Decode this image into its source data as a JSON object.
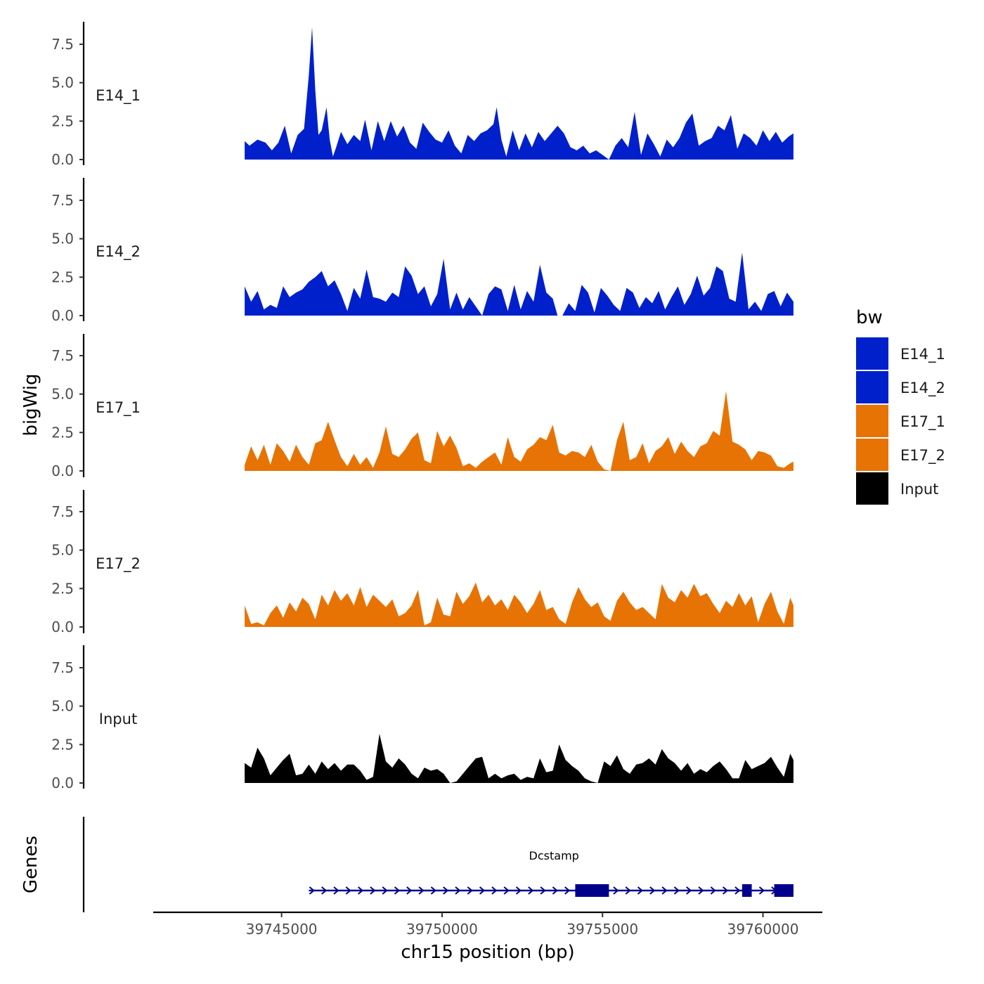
{
  "chart_data": {
    "type": "area",
    "title": "",
    "xlabel": "chr15 position (bp)",
    "ylabel": "bigWig",
    "genes_label": "Genes",
    "xlim": [
      39741000,
      39761850
    ],
    "ylim": [
      0,
      8.9
    ],
    "y_ticks": [
      "0.0",
      "2.5",
      "5.0",
      "7.5"
    ],
    "y_tick_values": [
      0,
      2.5,
      5.0,
      7.5
    ],
    "x_ticks": [
      "39745000",
      "39750000",
      "39755000",
      "39760000"
    ],
    "x_tick_values": [
      39745000,
      39750000,
      39755000,
      39760000
    ],
    "legend": {
      "title": "bw",
      "entries": [
        {
          "label": "E14_1",
          "color": "#0020cc"
        },
        {
          "label": "E14_2",
          "color": "#0020cc"
        },
        {
          "label": "E17_1",
          "color": "#e87305"
        },
        {
          "label": "E17_2",
          "color": "#e87305"
        },
        {
          "label": "Input",
          "color": "#000000"
        }
      ]
    },
    "series": [
      {
        "name": "E14_1",
        "color": "#0020cc",
        "x": [
          39743850,
          39744000,
          39744250,
          39744500,
          39744700,
          39744900,
          39745100,
          39745300,
          39745500,
          39745700,
          39745850,
          39745950,
          39746050,
          39746150,
          39746250,
          39746400,
          39746500,
          39746600,
          39746700,
          39746850,
          39747050,
          39747250,
          39747450,
          39747600,
          39747800,
          39748000,
          39748200,
          39748400,
          39748600,
          39748800,
          39749000,
          39749200,
          39749400,
          39749600,
          39749800,
          39750000,
          39750200,
          39750400,
          39750600,
          39750800,
          39751000,
          39751200,
          39751400,
          39751600,
          39751700,
          39751850,
          39752000,
          39752200,
          39752400,
          39752600,
          39752800,
          39753000,
          39753200,
          39753400,
          39753600,
          39753800,
          39754000,
          39754200,
          39754400,
          39754600,
          39754800,
          39755000,
          39755200,
          39755400,
          39755600,
          39755800,
          39756000,
          39756200,
          39756400,
          39756600,
          39756800,
          39757000,
          39757200,
          39757400,
          39757600,
          39757800,
          39758000,
          39758200,
          39758400,
          39758600,
          39758800,
          39759000,
          39759200,
          39759400,
          39759600,
          39759800,
          39760000,
          39760200,
          39760400,
          39760600,
          39760800,
          39760950
        ],
        "y": [
          1.2,
          0.9,
          1.3,
          1.1,
          0.6,
          1.1,
          2.2,
          0.4,
          1.6,
          2.0,
          5.5,
          8.6,
          4.5,
          1.6,
          1.9,
          3.4,
          1.3,
          0.2,
          0.8,
          1.8,
          1.0,
          1.6,
          1.2,
          2.6,
          0.6,
          2.5,
          1.2,
          2.5,
          1.5,
          2.2,
          1.1,
          0.7,
          2.4,
          1.8,
          1.3,
          1.1,
          1.9,
          0.9,
          0.4,
          1.6,
          1.2,
          1.7,
          1.9,
          2.3,
          3.4,
          1.3,
          0.2,
          1.9,
          0.6,
          1.7,
          0.8,
          1.8,
          1.2,
          1.7,
          2.2,
          1.7,
          0.8,
          0.6,
          0.9,
          0.4,
          0.6,
          0.3,
          0.0,
          0.9,
          1.4,
          0.8,
          3.1,
          0.3,
          1.7,
          1.0,
          0.2,
          1.3,
          0.8,
          1.4,
          2.4,
          3.0,
          0.9,
          1.2,
          1.4,
          2.2,
          1.9,
          2.9,
          0.7,
          1.7,
          1.4,
          0.9,
          1.9,
          1.2,
          1.8,
          1.1,
          1.5,
          1.7
        ]
      },
      {
        "name": "E14_2",
        "color": "#0020cc",
        "x": [
          39743850,
          39744050,
          39744250,
          39744450,
          39744650,
          39744850,
          39745050,
          39745250,
          39745450,
          39745650,
          39745850,
          39746050,
          39746250,
          39746450,
          39746650,
          39746850,
          39747050,
          39747250,
          39747450,
          39747650,
          39747850,
          39748050,
          39748250,
          39748450,
          39748650,
          39748850,
          39749050,
          39749250,
          39749450,
          39749650,
          39749850,
          39750050,
          39750250,
          39750450,
          39750650,
          39750850,
          39751050,
          39751250,
          39751450,
          39751650,
          39751850,
          39752050,
          39752250,
          39752450,
          39752650,
          39752850,
          39753050,
          39753250,
          39753450,
          39753600,
          39753750,
          39753950,
          39754150,
          39754350,
          39754550,
          39754750,
          39754950,
          39755150,
          39755350,
          39755550,
          39755750,
          39755950,
          39756150,
          39756350,
          39756550,
          39756750,
          39756950,
          39757150,
          39757350,
          39757550,
          39757750,
          39757950,
          39758150,
          39758350,
          39758550,
          39758750,
          39758950,
          39759150,
          39759350,
          39759550,
          39759750,
          39759950,
          39760150,
          39760350,
          39760550,
          39760750,
          39760950
        ],
        "y": [
          1.9,
          0.9,
          1.6,
          0.4,
          0.7,
          0.5,
          1.9,
          1.2,
          1.5,
          1.7,
          2.2,
          2.5,
          2.9,
          1.9,
          2.3,
          1.4,
          0.3,
          1.8,
          1.1,
          3.0,
          1.2,
          1.1,
          0.9,
          1.5,
          1.2,
          3.2,
          2.6,
          1.4,
          1.9,
          0.6,
          1.4,
          3.7,
          0.4,
          1.5,
          0.4,
          1.2,
          0.6,
          0.0,
          1.4,
          1.9,
          1.7,
          0.3,
          2.0,
          0.4,
          1.6,
          0.9,
          3.3,
          1.5,
          1.1,
          0.0,
          0.0,
          0.8,
          0.3,
          2.0,
          1.5,
          0.2,
          1.8,
          1.3,
          0.7,
          0.3,
          1.8,
          1.5,
          0.5,
          1.2,
          0.8,
          1.6,
          0.4,
          1.2,
          1.9,
          0.7,
          1.4,
          2.6,
          1.3,
          1.8,
          3.2,
          2.9,
          1.1,
          0.9,
          4.1,
          0.4,
          0.9,
          0.3,
          1.4,
          1.6,
          0.6,
          1.5,
          0.9
        ]
      },
      {
        "name": "E17_1",
        "color": "#e87305",
        "x": [
          39743850,
          39744050,
          39744250,
          39744450,
          39744650,
          39744850,
          39745050,
          39745250,
          39745450,
          39745650,
          39745850,
          39746050,
          39746250,
          39746450,
          39746650,
          39746850,
          39747050,
          39747250,
          39747450,
          39747650,
          39747850,
          39748050,
          39748250,
          39748450,
          39748650,
          39748850,
          39749050,
          39749250,
          39749450,
          39749650,
          39749850,
          39750050,
          39750250,
          39750450,
          39750650,
          39750850,
          39751050,
          39751250,
          39751450,
          39751650,
          39751850,
          39752050,
          39752250,
          39752450,
          39752650,
          39752850,
          39753050,
          39753250,
          39753450,
          39753650,
          39753850,
          39754050,
          39754250,
          39754450,
          39754650,
          39754850,
          39755050,
          39755250,
          39755450,
          39755650,
          39755850,
          39756050,
          39756250,
          39756450,
          39756650,
          39756850,
          39757050,
          39757250,
          39757450,
          39757650,
          39757850,
          39758050,
          39758250,
          39758450,
          39758650,
          39758850,
          39759050,
          39759250,
          39759450,
          39759650,
          39759850,
          39760050,
          39760250,
          39760450,
          39760650,
          39760850,
          39760950
        ],
        "y": [
          0.4,
          1.6,
          0.7,
          1.7,
          0.4,
          1.8,
          1.3,
          0.6,
          1.7,
          0.9,
          0.4,
          1.8,
          2.0,
          3.2,
          2.0,
          0.9,
          0.3,
          1.1,
          0.4,
          0.9,
          0.2,
          1.2,
          2.9,
          1.1,
          0.9,
          1.4,
          2.1,
          2.5,
          0.7,
          0.5,
          2.6,
          1.6,
          2.3,
          1.5,
          0.3,
          0.5,
          0.2,
          0.6,
          0.9,
          1.2,
          0.4,
          2.2,
          0.9,
          0.6,
          1.4,
          1.7,
          2.2,
          2.0,
          3.0,
          1.2,
          1.0,
          1.3,
          1.2,
          0.9,
          1.7,
          0.6,
          0.1,
          0.0,
          2.0,
          3.2,
          0.7,
          0.9,
          1.8,
          0.5,
          1.3,
          1.6,
          2.2,
          1.1,
          1.9,
          1.3,
          0.9,
          1.6,
          1.8,
          2.6,
          2.3,
          5.2,
          1.9,
          1.7,
          1.4,
          0.7,
          1.3,
          1.2,
          1.0,
          0.3,
          0.2,
          0.5,
          0.6
        ]
      },
      {
        "name": "E17_2",
        "color": "#e87305",
        "x": [
          39743850,
          39744050,
          39744250,
          39744450,
          39744650,
          39744850,
          39745050,
          39745250,
          39745450,
          39745650,
          39745850,
          39746050,
          39746250,
          39746450,
          39746650,
          39746850,
          39747050,
          39747250,
          39747450,
          39747650,
          39747850,
          39748050,
          39748250,
          39748450,
          39748650,
          39748850,
          39749050,
          39749250,
          39749450,
          39749650,
          39749850,
          39750050,
          39750250,
          39750450,
          39750650,
          39750850,
          39751050,
          39751250,
          39751450,
          39751650,
          39751850,
          39752050,
          39752250,
          39752450,
          39752650,
          39752850,
          39753050,
          39753250,
          39753450,
          39753650,
          39753850,
          39754050,
          39754250,
          39754450,
          39754650,
          39754850,
          39755050,
          39755250,
          39755450,
          39755650,
          39755850,
          39756050,
          39756250,
          39756450,
          39756650,
          39756850,
          39757050,
          39757250,
          39757450,
          39757650,
          39757850,
          39758050,
          39758250,
          39758450,
          39758650,
          39758850,
          39759050,
          39759250,
          39759450,
          39759650,
          39759850,
          39760050,
          39760250,
          39760450,
          39760650,
          39760850,
          39760950
        ],
        "y": [
          1.4,
          0.2,
          0.3,
          0.1,
          0.9,
          1.4,
          0.6,
          1.6,
          1.0,
          1.9,
          1.5,
          0.5,
          2.1,
          1.4,
          2.4,
          1.7,
          2.2,
          1.4,
          2.6,
          1.3,
          2.1,
          1.7,
          1.3,
          1.8,
          0.7,
          0.9,
          1.4,
          2.4,
          0.1,
          0.3,
          1.9,
          0.8,
          0.7,
          2.3,
          1.5,
          2.0,
          2.9,
          1.6,
          2.1,
          1.4,
          1.8,
          1.1,
          2.1,
          1.6,
          0.9,
          1.5,
          2.4,
          1.1,
          1.3,
          0.5,
          0.2,
          1.6,
          2.6,
          1.8,
          1.3,
          1.6,
          0.7,
          0.4,
          1.7,
          2.3,
          1.6,
          1.1,
          1.3,
          0.9,
          0.5,
          2.8,
          1.9,
          1.6,
          2.4,
          1.9,
          2.8,
          2.0,
          2.2,
          1.5,
          0.9,
          1.7,
          1.3,
          2.2,
          1.4,
          2.0,
          0.3,
          1.5,
          2.3,
          1.0,
          0.2,
          1.9,
          1.4
        ]
      },
      {
        "name": "Input",
        "color": "#000000",
        "x": [
          39743850,
          39744050,
          39744250,
          39744450,
          39744650,
          39744850,
          39745050,
          39745250,
          39745450,
          39745650,
          39745850,
          39746050,
          39746250,
          39746450,
          39746650,
          39746850,
          39747050,
          39747250,
          39747450,
          39747650,
          39747850,
          39748050,
          39748250,
          39748450,
          39748650,
          39748850,
          39749050,
          39749250,
          39749450,
          39749650,
          39749850,
          39750050,
          39750250,
          39750450,
          39750650,
          39750850,
          39751050,
          39751250,
          39751450,
          39751650,
          39751850,
          39752050,
          39752250,
          39752450,
          39752650,
          39752850,
          39753050,
          39753250,
          39753450,
          39753650,
          39753850,
          39754050,
          39754250,
          39754450,
          39754650,
          39754850,
          39755050,
          39755250,
          39755450,
          39755650,
          39755850,
          39756050,
          39756250,
          39756450,
          39756650,
          39756850,
          39757050,
          39757250,
          39757450,
          39757650,
          39757850,
          39758050,
          39758250,
          39758450,
          39758650,
          39758850,
          39759050,
          39759250,
          39759450,
          39759650,
          39759850,
          39760050,
          39760250,
          39760450,
          39760650,
          39760850,
          39760950
        ],
        "y": [
          1.3,
          1.0,
          2.3,
          1.6,
          0.5,
          1.0,
          1.5,
          1.9,
          0.5,
          0.6,
          1.2,
          0.6,
          1.4,
          0.9,
          1.3,
          0.8,
          1.2,
          1.2,
          0.8,
          0.2,
          0.4,
          3.2,
          1.4,
          1.0,
          1.6,
          1.2,
          0.6,
          0.3,
          1.0,
          0.8,
          0.9,
          0.6,
          0.0,
          0.1,
          0.6,
          1.1,
          1.6,
          1.7,
          0.3,
          0.6,
          0.3,
          0.5,
          0.6,
          0.2,
          0.4,
          0.3,
          1.6,
          0.7,
          0.8,
          2.5,
          1.5,
          1.1,
          0.8,
          0.3,
          0.1,
          0.0,
          1.4,
          1.1,
          1.8,
          0.9,
          0.6,
          1.2,
          1.3,
          1.6,
          1.2,
          2.2,
          1.6,
          1.3,
          0.8,
          1.3,
          0.6,
          0.9,
          0.7,
          1.1,
          1.4,
          0.9,
          0.3,
          0.3,
          1.5,
          0.9,
          1.1,
          1.3,
          1.7,
          1.0,
          0.4,
          1.9,
          1.5
        ]
      }
    ],
    "genes": [
      {
        "name": "Dcstamp",
        "strand": "+",
        "start": 39745850,
        "end": 39760950,
        "exons": [
          [
            39754150,
            39755200
          ],
          [
            39759350,
            39759650
          ],
          [
            39760350,
            39760950
          ]
        ]
      }
    ]
  }
}
